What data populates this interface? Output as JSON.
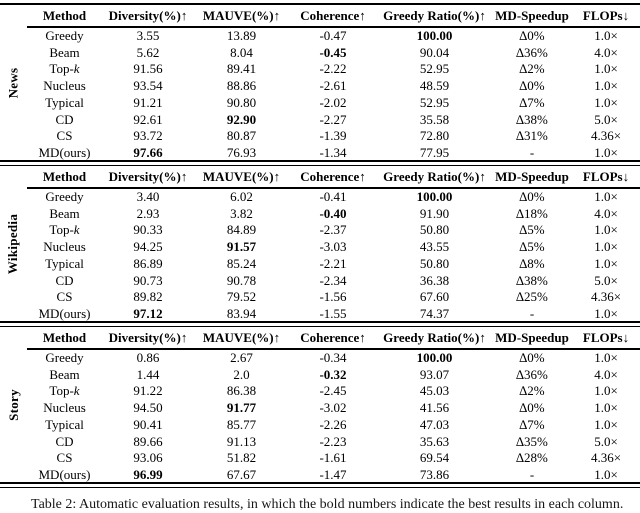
{
  "table": {
    "columns": [
      "Method",
      "Diversity(%)↑",
      "MAUVE(%)↑",
      "Coherence↑",
      "Greedy Ratio(%)↑",
      "MD-Speedup",
      "FLOPs↓"
    ],
    "sections": [
      {
        "label": "News",
        "rows": [
          {
            "method": "Greedy",
            "values": [
              "3.55",
              "13.89",
              "-0.47",
              "100.00",
              "∆0%",
              "1.0×"
            ],
            "bold": [
              3
            ]
          },
          {
            "method": "Beam",
            "values": [
              "5.62",
              "8.04",
              "-0.45",
              "90.04",
              "∆36%",
              "4.0×"
            ],
            "bold": [
              2
            ]
          },
          {
            "method": "Top-k",
            "italic_k": true,
            "values": [
              "91.56",
              "89.41",
              "-2.22",
              "52.95",
              "∆2%",
              "1.0×"
            ],
            "bold": []
          },
          {
            "method": "Nucleus",
            "values": [
              "93.54",
              "88.86",
              "-2.61",
              "48.59",
              "∆0%",
              "1.0×"
            ],
            "bold": []
          },
          {
            "method": "Typical",
            "values": [
              "91.21",
              "90.80",
              "-2.02",
              "52.95",
              "∆7%",
              "1.0×"
            ],
            "bold": []
          },
          {
            "method": "CD",
            "values": [
              "92.61",
              "92.90",
              "-2.27",
              "35.58",
              "∆38%",
              "5.0×"
            ],
            "bold": [
              1
            ]
          },
          {
            "method": "CS",
            "values": [
              "93.72",
              "80.87",
              "-1.39",
              "72.80",
              "∆31%",
              "4.36×"
            ],
            "bold": []
          },
          {
            "method": "MD(ours)",
            "values": [
              "97.66",
              "76.93",
              "-1.34",
              "77.95",
              "-",
              "1.0×"
            ],
            "bold": [
              0
            ]
          }
        ]
      },
      {
        "label": "Wikipedia",
        "rows": [
          {
            "method": "Greedy",
            "values": [
              "3.40",
              "6.02",
              "-0.41",
              "100.00",
              "∆0%",
              "1.0×"
            ],
            "bold": [
              3
            ]
          },
          {
            "method": "Beam",
            "values": [
              "2.93",
              "3.82",
              "-0.40",
              "91.90",
              "∆18%",
              "4.0×"
            ],
            "bold": [
              2
            ]
          },
          {
            "method": "Top-k",
            "italic_k": true,
            "values": [
              "90.33",
              "84.89",
              "-2.37",
              "50.80",
              "∆5%",
              "1.0×"
            ],
            "bold": []
          },
          {
            "method": "Nucleus",
            "values": [
              "94.25",
              "91.57",
              "-3.03",
              "43.55",
              "∆5%",
              "1.0×"
            ],
            "bold": [
              1
            ]
          },
          {
            "method": "Typical",
            "values": [
              "86.89",
              "85.24",
              "-2.21",
              "50.80",
              "∆8%",
              "1.0×"
            ],
            "bold": []
          },
          {
            "method": "CD",
            "values": [
              "90.73",
              "90.78",
              "-2.34",
              "36.38",
              "∆38%",
              "5.0×"
            ],
            "bold": []
          },
          {
            "method": "CS",
            "values": [
              "89.82",
              "79.52",
              "-1.56",
              "67.60",
              "∆25%",
              "4.36×"
            ],
            "bold": []
          },
          {
            "method": "MD(ours)",
            "values": [
              "97.12",
              "83.94",
              "-1.55",
              "74.37",
              "-",
              "1.0×"
            ],
            "bold": [
              0
            ]
          }
        ]
      },
      {
        "label": "Story",
        "rows": [
          {
            "method": "Greedy",
            "values": [
              "0.86",
              "2.67",
              "-0.34",
              "100.00",
              "∆0%",
              "1.0×"
            ],
            "bold": [
              3
            ]
          },
          {
            "method": "Beam",
            "values": [
              "1.44",
              "2.0",
              "-0.32",
              "93.07",
              "∆36%",
              "4.0×"
            ],
            "bold": [
              2
            ]
          },
          {
            "method": "Top-k",
            "italic_k": true,
            "values": [
              "91.22",
              "86.38",
              "-2.45",
              "45.03",
              "∆2%",
              "1.0×"
            ],
            "bold": []
          },
          {
            "method": "Nucleus",
            "values": [
              "94.50",
              "91.77",
              "-3.02",
              "41.56",
              "∆0%",
              "1.0×"
            ],
            "bold": [
              1
            ]
          },
          {
            "method": "Typical",
            "values": [
              "90.41",
              "85.77",
              "-2.26",
              "47.03",
              "∆7%",
              "1.0×"
            ],
            "bold": []
          },
          {
            "method": "CD",
            "values": [
              "89.66",
              "91.13",
              "-2.23",
              "35.63",
              "∆35%",
              "5.0×"
            ],
            "bold": []
          },
          {
            "method": "CS",
            "values": [
              "93.06",
              "51.82",
              "-1.61",
              "69.54",
              "∆28%",
              "4.36×"
            ],
            "bold": []
          },
          {
            "method": "MD(ours)",
            "values": [
              "96.99",
              "67.67",
              "-1.47",
              "73.86",
              "-",
              "1.0×"
            ],
            "bold": [
              0
            ]
          }
        ]
      }
    ]
  },
  "caption": "Table 2: Automatic evaluation results, in which the bold numbers indicate the best results in each column."
}
